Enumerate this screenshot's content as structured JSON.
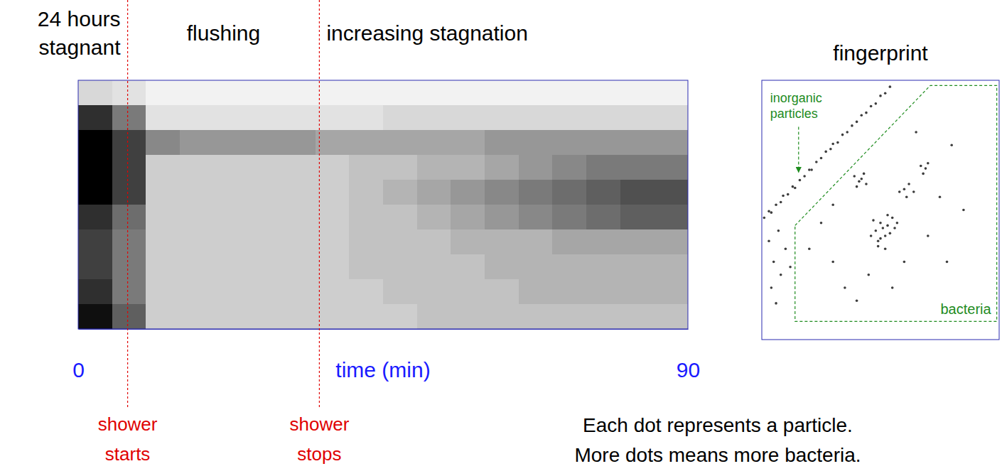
{
  "chart_data": [
    {
      "type": "heatmap",
      "x_label": "time (min)",
      "xlim": [
        0,
        90
      ],
      "xticks": [
        0,
        90
      ],
      "tick_labels": "x",
      "x": [
        0,
        5,
        10,
        15,
        20,
        25,
        30,
        35,
        40,
        45,
        50,
        55,
        60,
        65,
        70,
        75,
        80,
        85,
        90
      ],
      "values": [
        [
          0.25,
          0.2,
          0.1,
          0.1,
          0.1,
          0.1,
          0.1,
          0.1,
          0.1,
          0.1,
          0.1,
          0.1,
          0.1,
          0.1,
          0.1,
          0.1,
          0.1,
          0.1
        ],
        [
          0.85,
          0.6,
          0.2,
          0.2,
          0.2,
          0.2,
          0.2,
          0.2,
          0.2,
          0.25,
          0.25,
          0.25,
          0.25,
          0.25,
          0.25,
          0.25,
          0.25,
          0.25
        ],
        [
          1,
          0.8,
          0.55,
          0.5,
          0.5,
          0.5,
          0.5,
          0.45,
          0.45,
          0.45,
          0.45,
          0.45,
          0.5,
          0.5,
          0.5,
          0.5,
          0.5,
          0.5
        ],
        [
          1,
          0.8,
          0.3,
          0.3,
          0.3,
          0.3,
          0.3,
          0.3,
          0.35,
          0.35,
          0.4,
          0.4,
          0.45,
          0.5,
          0.55,
          0.6,
          0.6,
          0.6
        ],
        [
          1,
          0.8,
          0.3,
          0.3,
          0.3,
          0.3,
          0.3,
          0.3,
          0.35,
          0.4,
          0.45,
          0.5,
          0.55,
          0.6,
          0.65,
          0.7,
          0.75,
          0.75
        ],
        [
          0.85,
          0.65,
          0.3,
          0.3,
          0.3,
          0.3,
          0.3,
          0.3,
          0.35,
          0.35,
          0.4,
          0.45,
          0.5,
          0.55,
          0.6,
          0.65,
          0.7,
          0.7
        ],
        [
          0.8,
          0.6,
          0.3,
          0.3,
          0.3,
          0.3,
          0.3,
          0.3,
          0.35,
          0.35,
          0.35,
          0.4,
          0.4,
          0.4,
          0.45,
          0.45,
          0.45,
          0.45
        ],
        [
          0.8,
          0.6,
          0.3,
          0.3,
          0.3,
          0.3,
          0.3,
          0.3,
          0.35,
          0.35,
          0.35,
          0.35,
          0.4,
          0.4,
          0.4,
          0.4,
          0.4,
          0.4
        ],
        [
          0.85,
          0.6,
          0.3,
          0.3,
          0.3,
          0.3,
          0.3,
          0.3,
          0.3,
          0.35,
          0.35,
          0.35,
          0.35,
          0.4,
          0.4,
          0.4,
          0.4,
          0.4
        ],
        [
          0.95,
          0.7,
          0.3,
          0.3,
          0.3,
          0.3,
          0.3,
          0.3,
          0.3,
          0.3,
          0.35,
          0.35,
          0.35,
          0.35,
          0.35,
          0.35,
          0.35,
          0.35
        ]
      ],
      "events": [
        {
          "x": 7.3,
          "label": "shower\nstarts"
        },
        {
          "x": 35.6,
          "label": "shower\nstops"
        }
      ],
      "phases": [
        {
          "label": "24 hours\nstagnant",
          "start": 0,
          "end": 7.3
        },
        {
          "label": "flushing",
          "start": 7.3,
          "end": 35.6
        },
        {
          "label": "increasing stagnation",
          "start": 35.6,
          "end": 90
        }
      ]
    },
    {
      "type": "scatter",
      "title": "fingerprint",
      "xlim": [
        0,
        100
      ],
      "ylim": [
        0,
        100
      ],
      "tick_labels": false,
      "color": "#3c3c3c",
      "x": [
        1,
        3,
        4,
        6,
        8,
        9,
        11,
        13,
        14,
        16,
        18,
        20,
        21,
        23,
        25,
        27,
        29,
        30,
        32,
        34,
        36,
        38,
        40,
        42,
        44,
        46,
        48,
        50,
        52,
        54,
        3,
        5,
        8,
        4,
        10,
        7,
        12,
        6,
        48,
        50,
        52,
        53,
        55,
        49,
        47,
        54,
        51,
        56,
        50,
        46,
        53,
        57,
        49,
        52,
        39,
        41,
        43,
        40,
        42,
        44,
        60,
        62,
        64,
        61,
        58,
        67,
        69,
        68,
        70,
        30,
        35,
        45,
        60,
        70,
        75,
        25,
        80,
        65,
        85,
        40,
        55,
        30,
        20,
        78
      ],
      "y": [
        47,
        49.5,
        49,
        52,
        53,
        55.5,
        56,
        59,
        58.5,
        61.5,
        63,
        65.5,
        65.5,
        68.5,
        70,
        72.5,
        73.5,
        75.5,
        76,
        79,
        80,
        82.5,
        84,
        86.5,
        87.5,
        90,
        91,
        94,
        95,
        97.5,
        38,
        30,
        25,
        20,
        35,
        42,
        28,
        14,
        42,
        45,
        40,
        44,
        47,
        38,
        46,
        41,
        43,
        43,
        39,
        40,
        48,
        45,
        36,
        35,
        63,
        61,
        64,
        59,
        62,
        60,
        58,
        60,
        57,
        55,
        57,
        67,
        66,
        64,
        68,
        30,
        20,
        25,
        30,
        40,
        55,
        45,
        75,
        80,
        50,
        15,
        20,
        52,
        35,
        30
      ],
      "gate": {
        "label": "bacteria",
        "x": [
          14,
          71,
          99,
          99,
          14
        ],
        "y": [
          44,
          98,
          98,
          7,
          7
        ]
      },
      "annotations": [
        {
          "text": "inorganic\nparticles",
          "x": 15.5,
          "y": 64
        }
      ]
    }
  ],
  "footnotes": [
    "Each dot represents a particle.",
    "More dots means more bacteria."
  ]
}
